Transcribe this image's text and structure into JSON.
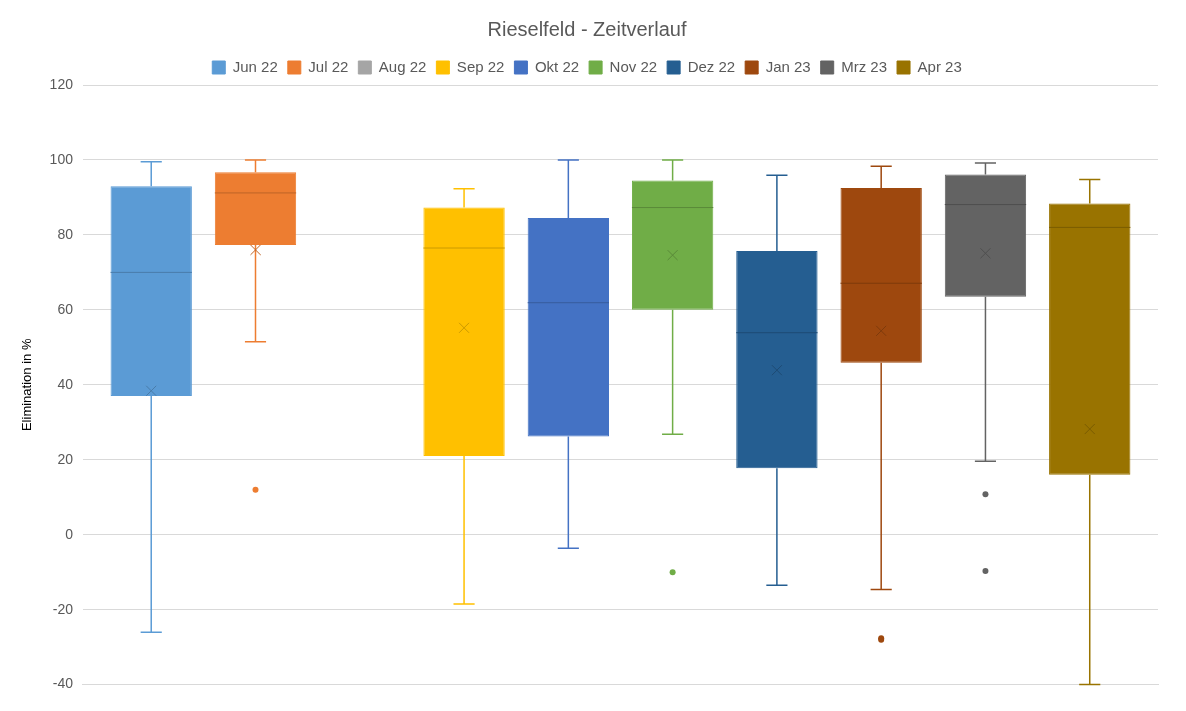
{
  "chart_data": {
    "type": "box",
    "title": "Rieselfeld - Zeitverlauf",
    "ylabel": "Elimination in %",
    "categories": [
      null
    ],
    "ylim": [
      -40,
      120
    ],
    "yticks": [
      -40,
      -20,
      0,
      20,
      40,
      60,
      80,
      100,
      120
    ],
    "grid": "y",
    "legend": "top",
    "tick_labels": "y",
    "series": [
      {
        "name": "Jun 22",
        "color": "#5b9bd5",
        "boxes": [
          {
            "low": -26,
            "q1": 37,
            "median": 70,
            "q3": 93,
            "high": 99.5,
            "mean": 38.4
          }
        ]
      },
      {
        "name": "Jul 22",
        "color": "#ed7d31",
        "boxes": [
          {
            "low": 51.5,
            "q1": 77.3,
            "median": 91.2,
            "q3": 96.7,
            "high": 100,
            "mean": 76,
            "outliers": [
              12
            ]
          }
        ]
      },
      {
        "name": "Aug 22",
        "color": "#a5a5a5",
        "boxes": [
          null
        ]
      },
      {
        "name": "Sep 22",
        "color": "#ffc000",
        "boxes": [
          {
            "low": -18.5,
            "q1": 21,
            "median": 76.5,
            "q3": 87.3,
            "high": 92.3,
            "mean": 55.2
          }
        ]
      },
      {
        "name": "Okt 22",
        "color": "#4472c4",
        "boxes": [
          {
            "low": -3.6,
            "q1": 26.2,
            "median": 61.9,
            "q3": 84.5,
            "high": 100
          }
        ]
      },
      {
        "name": "Nov 22",
        "color": "#70ad47",
        "boxes": [
          {
            "low": 26.8,
            "q1": 60,
            "median": 87.3,
            "q3": 94.5,
            "high": 100,
            "mean": 74.6,
            "outliers": [
              -10
            ]
          }
        ]
      },
      {
        "name": "Dez 22",
        "color": "#255e91",
        "boxes": [
          {
            "low": -13.5,
            "q1": 17.7,
            "median": 53.9,
            "q3": 75.7,
            "high": 95.9,
            "mean": 43.9
          }
        ]
      },
      {
        "name": "Jan 23",
        "color": "#9e480e",
        "boxes": [
          {
            "low": -14.6,
            "q1": 45.9,
            "median": 67.1,
            "q3": 92.5,
            "high": 98.3,
            "mean": 54.4,
            "outliers": [
              -27.6,
              -28
            ]
          }
        ]
      },
      {
        "name": "Mrz 23",
        "color": "#636363",
        "boxes": [
          {
            "low": 19.6,
            "q1": 63.5,
            "median": 88.1,
            "q3": 96.1,
            "high": 99.2,
            "mean": 75.1,
            "outliers": [
              10.8,
              -9.7
            ]
          }
        ]
      },
      {
        "name": "Apr 23",
        "color": "#997300",
        "boxes": [
          {
            "low": -40,
            "q1": 16,
            "median": 82,
            "q3": 88.4,
            "high": 94.8,
            "mean": 28.2
          }
        ]
      }
    ]
  }
}
